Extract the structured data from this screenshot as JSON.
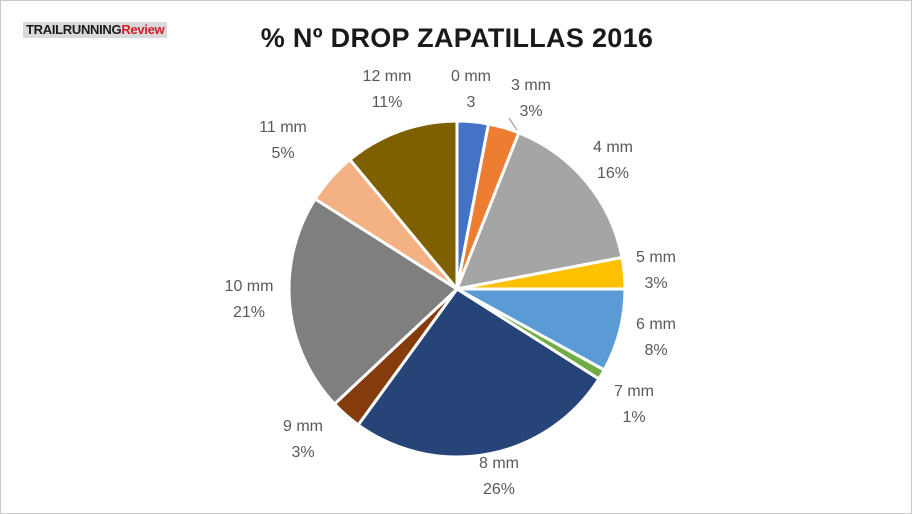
{
  "logo": {
    "part1": "TRAILRUNNING",
    "part2": "Review"
  },
  "chart_data": {
    "type": "pie",
    "title": "% Nº DROP ZAPATILLAS 2016",
    "slices": [
      {
        "label": "0 mm",
        "value_label": "3",
        "value": 3,
        "color": "#4472c4"
      },
      {
        "label": "3 mm",
        "value_label": "3%",
        "value": 3,
        "color": "#ed7d31"
      },
      {
        "label": "4 mm",
        "value_label": "16%",
        "value": 16,
        "color": "#a5a5a5"
      },
      {
        "label": "5 mm",
        "value_label": "3%",
        "value": 3,
        "color": "#ffc000"
      },
      {
        "label": "6 mm",
        "value_label": "8%",
        "value": 8,
        "color": "#5b9bd5"
      },
      {
        "label": "7 mm",
        "value_label": "1%",
        "value": 1,
        "color": "#70ad47"
      },
      {
        "label": "8 mm",
        "value_label": "26%",
        "value": 26,
        "color": "#264478"
      },
      {
        "label": "9 mm",
        "value_label": "3%",
        "value": 3,
        "color": "#843c0c"
      },
      {
        "label": "10 mm",
        "value_label": "21%",
        "value": 21,
        "color": "#7f7f7f"
      },
      {
        "label": "11 mm",
        "value_label": "5%",
        "value": 5,
        "color": "#f4b183"
      },
      {
        "label": "12 mm",
        "value_label": "11%",
        "value": 11,
        "color": "#7f6000"
      }
    ]
  }
}
